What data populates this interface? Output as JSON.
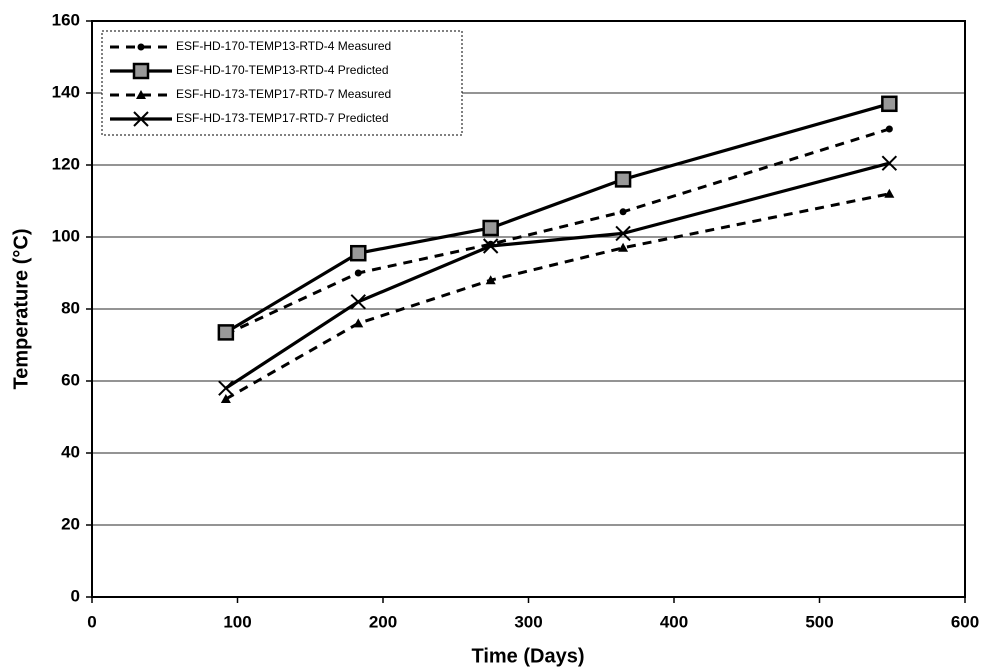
{
  "chart_data": {
    "type": "line",
    "x_label": "Time (Days)",
    "y_label": "Temperature (°C)",
    "xlim": [
      0,
      600
    ],
    "xticks": [
      0,
      100,
      200,
      300,
      400,
      500,
      600
    ],
    "ylim": [
      0,
      160
    ],
    "yticks": [
      0,
      20,
      40,
      60,
      80,
      100,
      120,
      140,
      160
    ],
    "grid": true,
    "legend": "upper left",
    "series": [
      {
        "name": "ESF-HD-170-TEMP13-RTD-4 Measured",
        "color": "#000000",
        "line_style": "dashed",
        "marker": "circle",
        "x": [
          92,
          183,
          274,
          365,
          548
        ],
        "values": [
          73,
          90,
          98,
          107,
          130
        ]
      },
      {
        "name": "ESF-HD-170-TEMP13-RTD-4 Predicted",
        "color": "#000000",
        "line_style": "solid",
        "marker": "square",
        "x": [
          92,
          183,
          274,
          365,
          548
        ],
        "values": [
          73.5,
          95.5,
          102.5,
          116,
          137
        ]
      },
      {
        "name": "ESF-HD-173-TEMP17-RTD-7 Measured",
        "color": "#000000",
        "line_style": "dashed",
        "marker": "triangle",
        "x": [
          92,
          183,
          274,
          365,
          548
        ],
        "values": [
          55,
          76,
          88,
          97,
          112
        ]
      },
      {
        "name": "ESF-HD-173-TEMP17-RTD-7 Predicted",
        "color": "#000000",
        "line_style": "solid",
        "marker": "x",
        "x": [
          92,
          183,
          274,
          365,
          548
        ],
        "values": [
          58,
          82,
          97.5,
          101,
          120.5
        ]
      }
    ]
  }
}
